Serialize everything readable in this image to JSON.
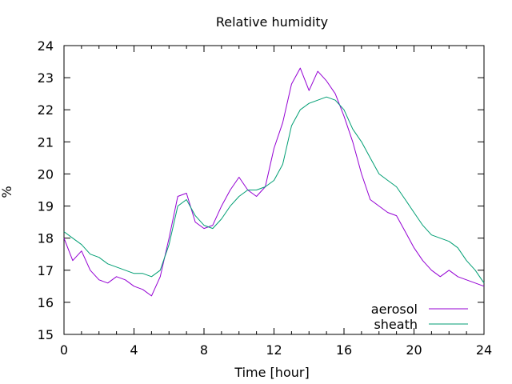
{
  "chart_data": {
    "type": "line",
    "title": "Relative humidity",
    "xlabel": "Time [hour]",
    "ylabel": "%",
    "xlim": [
      0,
      24
    ],
    "ylim": [
      15,
      24
    ],
    "xticks": [
      0,
      4,
      8,
      12,
      16,
      20,
      24
    ],
    "yticks": [
      15,
      16,
      17,
      18,
      19,
      20,
      21,
      22,
      23,
      24
    ],
    "grid": false,
    "legend_position": "bottom-right",
    "series": [
      {
        "name": "aerosol",
        "color": "#9400D3",
        "x": [
          0,
          0.5,
          1,
          1.5,
          2,
          2.5,
          3,
          3.5,
          4,
          4.5,
          5,
          5.5,
          6,
          6.5,
          7,
          7.5,
          8,
          8.5,
          9,
          9.5,
          10,
          10.5,
          11,
          11.5,
          12,
          12.5,
          13,
          13.5,
          14,
          14.5,
          15,
          15.5,
          16,
          16.5,
          17,
          17.5,
          18,
          18.5,
          19,
          19.5,
          20,
          20.5,
          21,
          21.5,
          22,
          22.5,
          23,
          23.5,
          24
        ],
        "y": [
          18.0,
          17.3,
          17.6,
          17.0,
          16.7,
          16.6,
          16.8,
          16.7,
          16.5,
          16.4,
          16.2,
          16.8,
          18.0,
          19.3,
          19.4,
          18.5,
          18.3,
          18.4,
          19.0,
          19.5,
          19.9,
          19.5,
          19.3,
          19.6,
          20.8,
          21.6,
          22.8,
          23.3,
          22.6,
          23.2,
          22.9,
          22.5,
          21.8,
          21.0,
          20.0,
          19.2,
          19.0,
          18.8,
          18.7,
          18.2,
          17.7,
          17.3,
          17.0,
          16.8,
          17.0,
          16.8,
          16.7,
          16.6,
          16.5
        ]
      },
      {
        "name": "sheath",
        "color": "#009E73",
        "x": [
          0,
          0.5,
          1,
          1.5,
          2,
          2.5,
          3,
          3.5,
          4,
          4.5,
          5,
          5.5,
          6,
          6.5,
          7,
          7.5,
          8,
          8.5,
          9,
          9.5,
          10,
          10.5,
          11,
          11.5,
          12,
          12.5,
          13,
          13.5,
          14,
          14.5,
          15,
          15.5,
          16,
          16.5,
          17,
          17.5,
          18,
          18.5,
          19,
          19.5,
          20,
          20.5,
          21,
          21.5,
          22,
          22.5,
          23,
          23.5,
          24
        ],
        "y": [
          18.2,
          18.0,
          17.8,
          17.5,
          17.4,
          17.2,
          17.1,
          17.0,
          16.9,
          16.9,
          16.8,
          17.0,
          17.8,
          19.0,
          19.2,
          18.7,
          18.4,
          18.3,
          18.6,
          19.0,
          19.3,
          19.5,
          19.5,
          19.6,
          19.8,
          20.3,
          21.5,
          22.0,
          22.2,
          22.3,
          22.4,
          22.3,
          22.0,
          21.4,
          21.0,
          20.5,
          20.0,
          19.8,
          19.6,
          19.2,
          18.8,
          18.4,
          18.1,
          18.0,
          17.9,
          17.7,
          17.3,
          17.0,
          16.6
        ]
      }
    ]
  }
}
